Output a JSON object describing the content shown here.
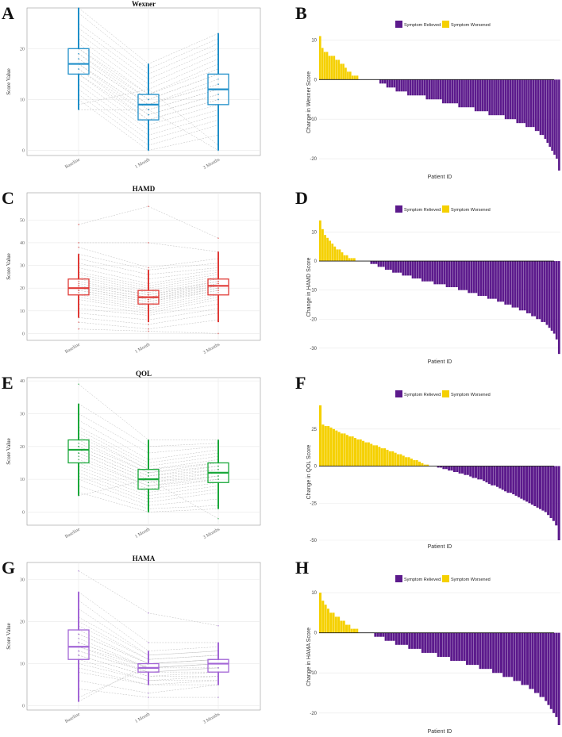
{
  "colors": {
    "relieved": "#5c1a8c",
    "worsened": "#f5d000",
    "wexner": "#1f8fc9",
    "hamd": "#e03a36",
    "qol": "#1aa83a",
    "hama": "#a366d6",
    "lines": "#bdbdbd",
    "grid": "#e9e9e9"
  },
  "legend": {
    "relieved": "Symptom Relieved",
    "worsened": "Symptom Worsened"
  },
  "boxplots": [
    {
      "letter": "A",
      "title": "Wexner",
      "ylabel": "Score Value",
      "color_key": "wexner",
      "ylim": [
        -1,
        28
      ],
      "ticks": [
        0,
        10,
        20
      ],
      "categories": [
        "Baseline",
        "1 Month",
        "3 Months"
      ],
      "stats": [
        {
          "min": 8,
          "q1": 15,
          "median": 17,
          "q3": 20,
          "max": 28
        },
        {
          "min": 0,
          "q1": 6,
          "median": 9,
          "q3": 11,
          "max": 17
        },
        {
          "min": 0,
          "q1": 9,
          "median": 12,
          "q3": 15,
          "max": 23
        }
      ],
      "points": [
        [
          28,
          27,
          25,
          24,
          23,
          22,
          21,
          20,
          20,
          19,
          19,
          18,
          18,
          17,
          17,
          17,
          16,
          16,
          15,
          15,
          14,
          13,
          12,
          11,
          10,
          9,
          8
        ],
        [
          17,
          16,
          15,
          14,
          13,
          12,
          11,
          11,
          10,
          10,
          9,
          9,
          9,
          8,
          8,
          7,
          7,
          6,
          6,
          5,
          4,
          3,
          2,
          1,
          0,
          12,
          8
        ],
        [
          23,
          22,
          21,
          20,
          19,
          18,
          17,
          16,
          15,
          15,
          14,
          13,
          13,
          12,
          12,
          11,
          11,
          10,
          10,
          9,
          8,
          7,
          6,
          5,
          3,
          1,
          0
        ]
      ]
    },
    {
      "letter": "C",
      "title": "HAMD",
      "ylabel": "Score Value",
      "color_key": "hamd",
      "ylim": [
        -3,
        62
      ],
      "ticks": [
        0,
        10,
        20,
        30,
        40,
        50
      ],
      "categories": [
        "Baseline",
        "1 Month",
        "3 Months"
      ],
      "stats": [
        {
          "min": 7,
          "q1": 17,
          "median": 20,
          "q3": 24,
          "max": 35
        },
        {
          "min": 5,
          "q1": 13,
          "median": 16,
          "q3": 19,
          "max": 28
        },
        {
          "min": 5,
          "q1": 17,
          "median": 21,
          "q3": 24,
          "max": 36
        }
      ],
      "points": [
        [
          48,
          40,
          38,
          35,
          33,
          31,
          29,
          27,
          26,
          25,
          24,
          23,
          22,
          21,
          21,
          20,
          20,
          19,
          19,
          18,
          17,
          16,
          15,
          13,
          11,
          9,
          7,
          5,
          2
        ],
        [
          56,
          40,
          29,
          28,
          26,
          24,
          22,
          21,
          20,
          19,
          18,
          17,
          17,
          16,
          16,
          15,
          15,
          14,
          14,
          13,
          12,
          11,
          10,
          9,
          8,
          6,
          4,
          2,
          1
        ],
        [
          42,
          36,
          33,
          31,
          29,
          28,
          27,
          26,
          25,
          24,
          23,
          23,
          22,
          22,
          21,
          21,
          20,
          20,
          19,
          19,
          18,
          17,
          16,
          15,
          13,
          11,
          9,
          6,
          0
        ]
      ]
    },
    {
      "letter": "E",
      "title": "QOL",
      "ylabel": "Score Value",
      "color_key": "qol",
      "ylim": [
        -4,
        41
      ],
      "ticks": [
        0,
        10,
        20,
        30,
        40
      ],
      "categories": [
        "Baseline",
        "1 Month",
        "3 Months"
      ],
      "stats": [
        {
          "min": 5,
          "q1": 15,
          "median": 19,
          "q3": 22,
          "max": 33
        },
        {
          "min": 0,
          "q1": 7,
          "median": 10,
          "q3": 13,
          "max": 22
        },
        {
          "min": 1,
          "q1": 9,
          "median": 12,
          "q3": 15,
          "max": 22
        }
      ],
      "points": [
        [
          39,
          33,
          30,
          28,
          26,
          25,
          24,
          23,
          22,
          21,
          20,
          20,
          19,
          19,
          18,
          18,
          17,
          16,
          15,
          14,
          13,
          12,
          11,
          10,
          8,
          6,
          5
        ],
        [
          22,
          20,
          18,
          16,
          15,
          14,
          13,
          13,
          12,
          12,
          11,
          11,
          10,
          10,
          9,
          9,
          8,
          8,
          7,
          6,
          5,
          4,
          3,
          2,
          1,
          0,
          10
        ],
        [
          22,
          21,
          20,
          19,
          18,
          17,
          16,
          15,
          15,
          14,
          14,
          13,
          13,
          12,
          12,
          11,
          11,
          10,
          10,
          9,
          8,
          7,
          6,
          4,
          2,
          1,
          -2
        ]
      ]
    },
    {
      "letter": "G",
      "title": "HAMA",
      "ylabel": "Score Value",
      "color_key": "hama",
      "ylim": [
        -1,
        34
      ],
      "ticks": [
        0,
        10,
        20,
        30
      ],
      "categories": [
        "Baseline",
        "1 Month",
        "3 Months"
      ],
      "stats": [
        {
          "min": 1,
          "q1": 11,
          "median": 14,
          "q3": 18,
          "max": 27
        },
        {
          "min": 5,
          "q1": 8,
          "median": 9,
          "q3": 10,
          "max": 13
        },
        {
          "min": 5,
          "q1": 8,
          "median": 10,
          "q3": 11,
          "max": 15
        }
      ],
      "points": [
        [
          32,
          27,
          25,
          23,
          21,
          20,
          19,
          18,
          17,
          17,
          16,
          15,
          15,
          14,
          14,
          13,
          13,
          12,
          12,
          11,
          10,
          9,
          8,
          6,
          4,
          2,
          1
        ],
        [
          22,
          15,
          13,
          12,
          12,
          11,
          11,
          10,
          10,
          10,
          9,
          9,
          9,
          9,
          8,
          8,
          8,
          7,
          7,
          6,
          6,
          5,
          5,
          3,
          2,
          9,
          10
        ],
        [
          19,
          15,
          14,
          13,
          13,
          12,
          12,
          11,
          11,
          11,
          10,
          10,
          10,
          9,
          9,
          9,
          8,
          8,
          7,
          7,
          6,
          6,
          5,
          5,
          2,
          10,
          11
        ]
      ]
    }
  ],
  "chart_data": [
    {
      "type": "bar",
      "panel": "B",
      "ylabel": "Change in Wexner Score",
      "xlabel": "Patient ID",
      "ylim": [
        -23,
        11.5
      ],
      "ticks": [
        10,
        0,
        -10,
        -20
      ],
      "values": [
        11,
        8,
        7,
        7,
        6,
        6,
        6,
        5,
        5,
        4,
        4,
        3,
        2,
        2,
        1,
        1,
        1,
        0,
        0,
        0,
        0,
        0,
        0,
        0,
        0,
        0,
        -1,
        -1,
        -1,
        -2,
        -2,
        -2,
        -2,
        -3,
        -3,
        -3,
        -3,
        -3,
        -4,
        -4,
        -4,
        -4,
        -4,
        -4,
        -4,
        -4,
        -5,
        -5,
        -5,
        -5,
        -5,
        -5,
        -5,
        -6,
        -6,
        -6,
        -6,
        -6,
        -6,
        -6,
        -7,
        -7,
        -7,
        -7,
        -7,
        -7,
        -7,
        -8,
        -8,
        -8,
        -8,
        -8,
        -8,
        -9,
        -9,
        -9,
        -9,
        -9,
        -9,
        -9,
        -10,
        -10,
        -10,
        -10,
        -10,
        -11,
        -11,
        -11,
        -11,
        -12,
        -12,
        -12,
        -12,
        -13,
        -13,
        -14,
        -14,
        -15,
        -16,
        -17,
        -18,
        -19,
        -20,
        -23
      ]
    },
    {
      "type": "bar",
      "panel": "D",
      "ylabel": "Change in HAMD Score",
      "xlabel": "Patient ID",
      "ylim": [
        -32.5,
        14.5
      ],
      "ticks": [
        10,
        0,
        -10,
        -20,
        -30
      ],
      "values": [
        14,
        11,
        9,
        8,
        7,
        6,
        5,
        4,
        4,
        3,
        2,
        2,
        1,
        1,
        1,
        0,
        0,
        0,
        0,
        0,
        0,
        -1,
        -1,
        -1,
        -2,
        -2,
        -2,
        -3,
        -3,
        -3,
        -4,
        -4,
        -4,
        -4,
        -5,
        -5,
        -5,
        -5,
        -6,
        -6,
        -6,
        -6,
        -7,
        -7,
        -7,
        -7,
        -7,
        -8,
        -8,
        -8,
        -8,
        -8,
        -9,
        -9,
        -9,
        -9,
        -9,
        -10,
        -10,
        -10,
        -10,
        -11,
        -11,
        -11,
        -11,
        -12,
        -12,
        -12,
        -12,
        -13,
        -13,
        -13,
        -13,
        -14,
        -14,
        -14,
        -15,
        -15,
        -15,
        -16,
        -16,
        -16,
        -17,
        -17,
        -17,
        -18,
        -18,
        -19,
        -19,
        -20,
        -20,
        -21,
        -21,
        -22,
        -23,
        -24,
        -25,
        -27,
        -32
      ]
    },
    {
      "type": "bar",
      "panel": "F",
      "ylabel": "Change in QOL Score",
      "xlabel": "Patient ID",
      "ylim": [
        -50,
        42
      ],
      "ticks": [
        25,
        0,
        -25,
        -50
      ],
      "values": [
        41,
        28,
        27,
        27,
        26,
        25,
        24,
        23,
        22,
        22,
        21,
        20,
        20,
        19,
        18,
        18,
        17,
        16,
        16,
        15,
        14,
        14,
        13,
        12,
        12,
        11,
        10,
        10,
        9,
        8,
        8,
        7,
        6,
        6,
        5,
        4,
        4,
        3,
        2,
        1,
        1,
        0,
        0,
        0,
        -1,
        -1,
        -2,
        -2,
        -3,
        -3,
        -4,
        -4,
        -5,
        -5,
        -6,
        -6,
        -7,
        -8,
        -8,
        -9,
        -9,
        -10,
        -11,
        -12,
        -13,
        -13,
        -14,
        -15,
        -16,
        -17,
        -18,
        -18,
        -19,
        -20,
        -21,
        -22,
        -23,
        -24,
        -25,
        -26,
        -27,
        -28,
        -29,
        -30,
        -31,
        -33,
        -35,
        -37,
        -40,
        -50
      ]
    },
    {
      "type": "bar",
      "panel": "H",
      "ylabel": "Change in HAMA Score",
      "xlabel": "Patient ID",
      "ylim": [
        -23,
        11
      ],
      "ticks": [
        10,
        0,
        -10,
        -20
      ],
      "values": [
        10,
        8,
        7,
        6,
        5,
        5,
        4,
        4,
        3,
        3,
        2,
        2,
        1,
        1,
        1,
        0,
        0,
        0,
        0,
        0,
        0,
        -1,
        -1,
        -1,
        -1,
        -2,
        -2,
        -2,
        -2,
        -3,
        -3,
        -3,
        -3,
        -3,
        -4,
        -4,
        -4,
        -4,
        -4,
        -5,
        -5,
        -5,
        -5,
        -5,
        -5,
        -6,
        -6,
        -6,
        -6,
        -6,
        -7,
        -7,
        -7,
        -7,
        -7,
        -7,
        -8,
        -8,
        -8,
        -8,
        -8,
        -9,
        -9,
        -9,
        -9,
        -9,
        -10,
        -10,
        -10,
        -10,
        -11,
        -11,
        -11,
        -11,
        -12,
        -12,
        -12,
        -13,
        -13,
        -13,
        -14,
        -14,
        -15,
        -15,
        -16,
        -16,
        -17,
        -18,
        -19,
        -20,
        -21,
        -23
      ]
    }
  ]
}
